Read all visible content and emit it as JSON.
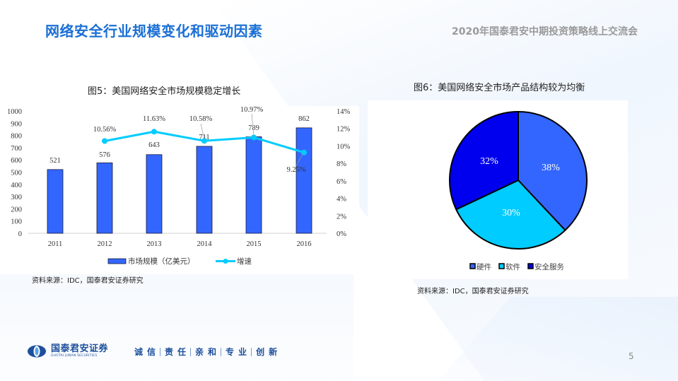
{
  "header": {
    "title": "网络安全行业规模变化和驱动因素",
    "event": "2020年国泰君安中期投资策略线上交流会"
  },
  "figure5": {
    "caption": "图5：美国网络安全市场规模稳定增长",
    "source": "资料来源：IDC，国泰君安证券研究",
    "legend": {
      "bar": "市场规模（亿美元）",
      "line": "增速"
    }
  },
  "figure6": {
    "caption": "图6：美国网络安全市场产品结构较为均衡",
    "source": "资料来源：IDC，国泰君安证券研究",
    "legend": [
      "硬件",
      "软件",
      "安全服务"
    ]
  },
  "footer": {
    "brand_cn": "国泰君安证券",
    "brand_en": "GUOTAI JUNAN SECURITIES",
    "slogan": [
      "诚信",
      "责任",
      "亲和",
      "专业",
      "创新"
    ],
    "page_number": "5"
  },
  "colors": {
    "title_blue": "#1a6fd6",
    "bar_blue": "#3366ff",
    "line_cyan": "#00ccff",
    "pie_hardware": "#3366ff",
    "pie_software": "#00ccff",
    "pie_service": "#0000ee"
  },
  "chart_data": [
    {
      "type": "bar+line",
      "title": "图5：美国网络安全市场规模稳定增长",
      "categories": [
        "2011",
        "2012",
        "2013",
        "2014",
        "2015",
        "2016"
      ],
      "series": [
        {
          "name": "市场规模（亿美元）",
          "type": "bar",
          "axis": "left",
          "values": [
            521,
            576,
            643,
            711,
            789,
            862
          ],
          "labels": [
            "521",
            "576",
            "643",
            "711",
            "789",
            "862"
          ]
        },
        {
          "name": "增速",
          "type": "line",
          "axis": "right",
          "values": [
            null,
            10.56,
            11.63,
            10.58,
            10.97,
            9.25
          ],
          "labels": [
            "",
            "10.56%",
            "11.63%",
            "10.58%",
            "10.97%",
            "9.25%"
          ]
        }
      ],
      "y_left": {
        "ticks": [
          "0",
          "100",
          "200",
          "300",
          "400",
          "500",
          "600",
          "700",
          "800",
          "900",
          "1000"
        ],
        "range": [
          0,
          1000
        ]
      },
      "y_right": {
        "ticks": [
          "0%",
          "2%",
          "4%",
          "6%",
          "8%",
          "10%",
          "12%",
          "14%"
        ],
        "range": [
          0,
          14
        ]
      },
      "xlabel": "",
      "ylabel": "",
      "grid": false,
      "legend_position": "bottom"
    },
    {
      "type": "pie",
      "title": "图6：美国网络安全市场产品结构较为均衡",
      "categories": [
        "硬件",
        "软件",
        "安全服务"
      ],
      "values": [
        38,
        30,
        32
      ],
      "labels": [
        "38%",
        "30%",
        "32%"
      ],
      "colors": [
        "#3366ff",
        "#00ccff",
        "#0000ee"
      ],
      "legend_position": "bottom"
    }
  ]
}
